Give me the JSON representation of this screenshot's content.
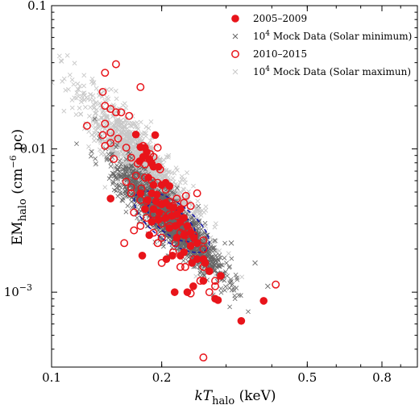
{
  "chart_data": {
    "type": "scatter",
    "xscale": "log",
    "yscale": "log",
    "xlim": [
      0.1,
      1.0
    ],
    "ylim": [
      0.0003,
      0.1
    ],
    "xticks": [
      {
        "value": 0.1,
        "label": "0.1"
      },
      {
        "value": 0.2,
        "label": "0.2"
      },
      {
        "value": 0.5,
        "label": "0.5"
      },
      {
        "value": 0.8,
        "label": "0.8"
      }
    ],
    "yticks": [
      {
        "value": 0.001,
        "label": "10",
        "sup": "−3"
      },
      {
        "value": 0.01,
        "label": "0.01",
        "sup": ""
      },
      {
        "value": 0.1,
        "label": "0.1",
        "sup": ""
      }
    ],
    "xlabel": {
      "main": "kT",
      "sub": "halo",
      "unit": " (keV)"
    },
    "ylabel": {
      "main": "EM",
      "sub": "halo",
      "unit": " (cm",
      "sup": "−6",
      "tail": " pc)"
    },
    "legend_position": "top-right",
    "legend": [
      {
        "key": "filled",
        "label": "2005–2009",
        "sup": "",
        "tail": ""
      },
      {
        "key": "mockmin",
        "label": "10",
        "sup": "4",
        "tail": " Mock Data (Solar minimum)"
      },
      {
        "key": "open",
        "label": "2010–2015",
        "sup": "",
        "tail": ""
      },
      {
        "key": "mockmax",
        "label": "10",
        "sup": "4",
        "tail": " Mock Data (Solar maximun)"
      }
    ],
    "colors": {
      "red": "#e8141a",
      "mock_min": "#666666",
      "mock_max": "#c8c8c8",
      "ellipse": "#1a1aa8"
    },
    "series": [
      {
        "name": "2005–2009",
        "marker": "filled-circle",
        "points": [
          [
            0.17,
            0.0126
          ],
          [
            0.175,
            0.0103
          ],
          [
            0.18,
            0.0102
          ],
          [
            0.182,
            0.0095
          ],
          [
            0.178,
            0.0088
          ],
          [
            0.185,
            0.0085
          ],
          [
            0.188,
            0.0079
          ],
          [
            0.19,
            0.0075
          ],
          [
            0.174,
            0.0082
          ],
          [
            0.196,
            0.0075
          ],
          [
            0.192,
            0.0125
          ],
          [
            0.184,
            0.0063
          ],
          [
            0.205,
            0.0058
          ],
          [
            0.2,
            0.0056
          ],
          [
            0.19,
            0.0056
          ],
          [
            0.21,
            0.0055
          ],
          [
            0.145,
            0.0045
          ],
          [
            0.175,
            0.0049
          ],
          [
            0.188,
            0.0049
          ],
          [
            0.194,
            0.0048
          ],
          [
            0.183,
            0.0044
          ],
          [
            0.193,
            0.0043
          ],
          [
            0.2,
            0.0041
          ],
          [
            0.205,
            0.0042
          ],
          [
            0.21,
            0.004
          ],
          [
            0.215,
            0.0039
          ],
          [
            0.18,
            0.0038
          ],
          [
            0.19,
            0.0038
          ],
          [
            0.197,
            0.0036
          ],
          [
            0.225,
            0.0038
          ],
          [
            0.22,
            0.0035
          ],
          [
            0.213,
            0.0034
          ],
          [
            0.205,
            0.0033
          ],
          [
            0.196,
            0.0032
          ],
          [
            0.188,
            0.0031
          ],
          [
            0.23,
            0.0033
          ],
          [
            0.225,
            0.0031
          ],
          [
            0.218,
            0.0029
          ],
          [
            0.21,
            0.0028
          ],
          [
            0.235,
            0.0029
          ],
          [
            0.24,
            0.0026
          ],
          [
            0.23,
            0.0025
          ],
          [
            0.22,
            0.0024
          ],
          [
            0.245,
            0.0024
          ],
          [
            0.25,
            0.0022
          ],
          [
            0.24,
            0.0021
          ],
          [
            0.23,
            0.0019
          ],
          [
            0.225,
            0.0018
          ],
          [
            0.214,
            0.0018
          ],
          [
            0.206,
            0.0017
          ],
          [
            0.25,
            0.0017
          ],
          [
            0.26,
            0.0017
          ],
          [
            0.263,
            0.0016
          ],
          [
            0.242,
            0.0016
          ],
          [
            0.27,
            0.0014
          ],
          [
            0.29,
            0.0013
          ],
          [
            0.26,
            0.0012
          ],
          [
            0.244,
            0.0011
          ],
          [
            0.235,
            0.001
          ],
          [
            0.217,
            0.001
          ],
          [
            0.28,
            0.0009
          ],
          [
            0.285,
            0.00088
          ],
          [
            0.33,
            0.00063
          ],
          [
            0.38,
            0.00087
          ],
          [
            0.177,
            0.0018
          ],
          [
            0.185,
            0.0025
          ]
        ]
      },
      {
        "name": "2010–2015",
        "marker": "open-circle",
        "points": [
          [
            0.15,
            0.039
          ],
          [
            0.14,
            0.034
          ],
          [
            0.175,
            0.027
          ],
          [
            0.138,
            0.025
          ],
          [
            0.14,
            0.02
          ],
          [
            0.145,
            0.019
          ],
          [
            0.15,
            0.018
          ],
          [
            0.155,
            0.018
          ],
          [
            0.163,
            0.017
          ],
          [
            0.125,
            0.0145
          ],
          [
            0.14,
            0.015
          ],
          [
            0.145,
            0.013
          ],
          [
            0.138,
            0.0125
          ],
          [
            0.152,
            0.0118
          ],
          [
            0.145,
            0.011
          ],
          [
            0.14,
            0.0105
          ],
          [
            0.16,
            0.0102
          ],
          [
            0.178,
            0.0105
          ],
          [
            0.186,
            0.0092
          ],
          [
            0.195,
            0.0102
          ],
          [
            0.19,
            0.0088
          ],
          [
            0.148,
            0.0085
          ],
          [
            0.165,
            0.0087
          ],
          [
            0.172,
            0.0079
          ],
          [
            0.18,
            0.0078
          ],
          [
            0.198,
            0.0072
          ],
          [
            0.17,
            0.0065
          ],
          [
            0.18,
            0.0063
          ],
          [
            0.188,
            0.006
          ],
          [
            0.195,
            0.0058
          ],
          [
            0.16,
            0.0059
          ],
          [
            0.165,
            0.0054
          ],
          [
            0.205,
            0.0052
          ],
          [
            0.176,
            0.0053
          ],
          [
            0.165,
            0.0049
          ],
          [
            0.25,
            0.0049
          ],
          [
            0.233,
            0.0047
          ],
          [
            0.175,
            0.0044
          ],
          [
            0.182,
            0.0043
          ],
          [
            0.21,
            0.0043
          ],
          [
            0.22,
            0.0045
          ],
          [
            0.197,
            0.0042
          ],
          [
            0.215,
            0.004
          ],
          [
            0.23,
            0.0042
          ],
          [
            0.24,
            0.004
          ],
          [
            0.168,
            0.0036
          ],
          [
            0.19,
            0.0035
          ],
          [
            0.2,
            0.0035
          ],
          [
            0.21,
            0.0035
          ],
          [
            0.22,
            0.0034
          ],
          [
            0.182,
            0.0033
          ],
          [
            0.2,
            0.003
          ],
          [
            0.175,
            0.0029
          ],
          [
            0.21,
            0.0029
          ],
          [
            0.228,
            0.0028
          ],
          [
            0.238,
            0.0027
          ],
          [
            0.168,
            0.0027
          ],
          [
            0.19,
            0.0026
          ],
          [
            0.225,
            0.0026
          ],
          [
            0.245,
            0.0025
          ],
          [
            0.2,
            0.0024
          ],
          [
            0.218,
            0.0022
          ],
          [
            0.158,
            0.0022
          ],
          [
            0.195,
            0.0022
          ],
          [
            0.238,
            0.0023
          ],
          [
            0.26,
            0.0023
          ],
          [
            0.26,
            0.002
          ],
          [
            0.215,
            0.0019
          ],
          [
            0.245,
            0.0017
          ],
          [
            0.2,
            0.0016
          ],
          [
            0.225,
            0.0015
          ],
          [
            0.232,
            0.0015
          ],
          [
            0.26,
            0.0015
          ],
          [
            0.255,
            0.0012
          ],
          [
            0.28,
            0.0011
          ],
          [
            0.27,
            0.001
          ],
          [
            0.24,
            0.00098
          ],
          [
            0.28,
            0.0012
          ],
          [
            0.41,
            0.00113
          ],
          [
            0.26,
            0.00035
          ]
        ]
      },
      {
        "name": "10^4 Mock Data (Solar minimum)",
        "marker": "cross",
        "center": [
          0.21,
          0.0032
        ],
        "spread": [
          0.14,
          0.33
        ],
        "outliers": [
          [
            0.36,
            0.0016
          ],
          [
            0.39,
            0.0011
          ],
          [
            0.31,
            0.0022
          ],
          [
            0.17,
            0.0069
          ],
          [
            0.16,
            0.0052
          ]
        ]
      },
      {
        "name": "10^4 Mock Data (Solar maximun)",
        "marker": "cross",
        "center": [
          0.18,
          0.0072
        ],
        "spread": [
          0.13,
          0.38
        ]
      }
    ],
    "confidence_ellipses": [
      {
        "center": [
          0.213,
          0.0031
        ],
        "half_axes_log": [
          0.21,
          0.045
        ]
      },
      {
        "center": [
          0.213,
          0.0031
        ],
        "half_axes_log": [
          0.135,
          0.03
        ]
      }
    ]
  }
}
